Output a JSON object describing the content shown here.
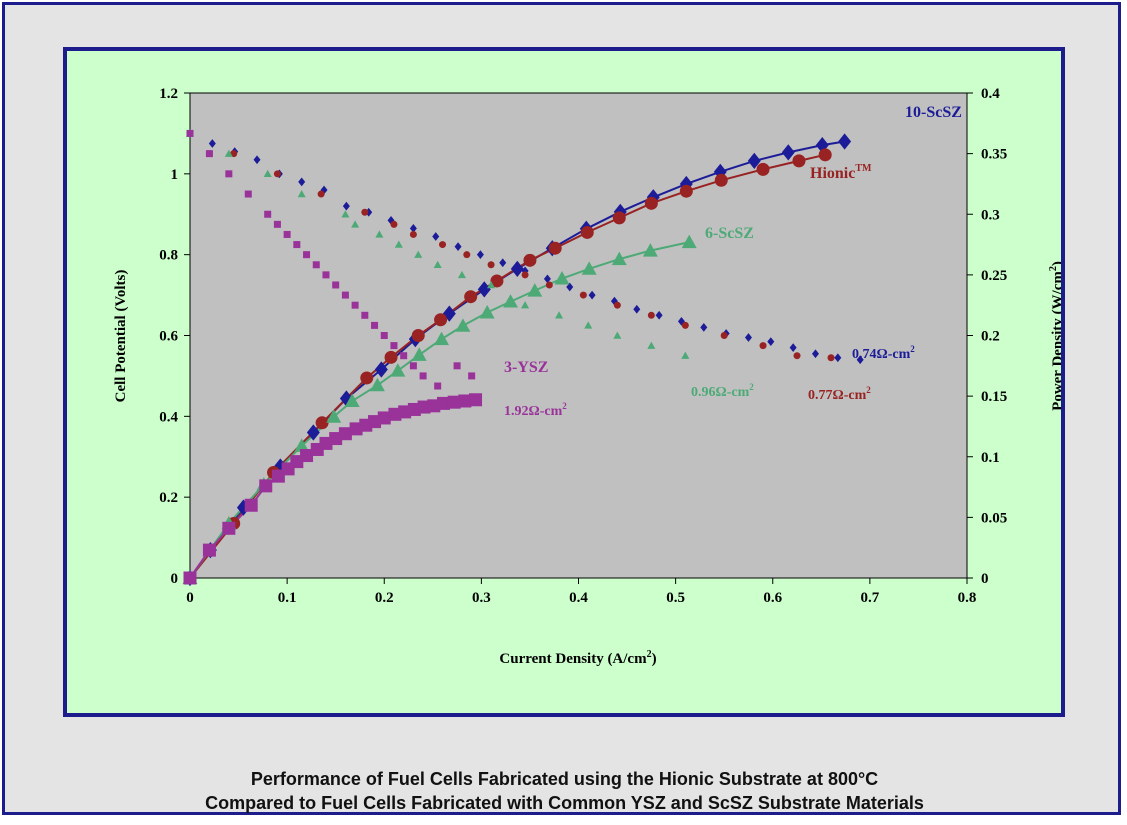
{
  "caption": {
    "line1": "Performance of Fuel Cells Fabricated using the Hionic Substrate at 800°C",
    "line2": "Compared to Fuel Cells Fabricated with Common YSZ and ScSZ Substrate Materials"
  },
  "colors": {
    "plot_bg": "#c0c0c0",
    "panel_bg": "#ccffcc",
    "frame_border": "#1c1c8c",
    "10-ScSZ": "#1c1c99",
    "Hionic": "#992222",
    "6-ScSZ": "#4daa77",
    "3-YSZ": "#993399"
  },
  "chart_data": {
    "type": "scatter",
    "title": "",
    "xlabel": "Current Density (A/cm2)",
    "ylabel_left": "Cell Potential (Volts)",
    "ylabel_right": "Power Density (W/cm2)",
    "xlim": [
      0,
      0.8
    ],
    "ylim_left": [
      0,
      1.2
    ],
    "ylim_right": [
      0,
      0.4
    ],
    "x_ticks": [
      "0",
      "0.1",
      "0.2",
      "0.3",
      "0.4",
      "0.5",
      "0.6",
      "0.7",
      "0.8"
    ],
    "y_left_ticks": [
      "0",
      "0.2",
      "0.4",
      "0.6",
      "0.8",
      "1",
      "1.2"
    ],
    "y_right_ticks": [
      "0",
      "0.05",
      "0.1",
      "0.15",
      "0.2",
      "0.25",
      "0.3",
      "0.35",
      "0.4"
    ],
    "grid": false,
    "series": [
      {
        "name": "10-ScSZ",
        "color": "#1c1c99",
        "marker": "diamond",
        "voltage": {
          "x": [
            0,
            0.023,
            0.046,
            0.069,
            0.092,
            0.115,
            0.138,
            0.161,
            0.184,
            0.207,
            0.23,
            0.253,
            0.276,
            0.299,
            0.322,
            0.345,
            0.368,
            0.391,
            0.414,
            0.437,
            0.46,
            0.483,
            0.506,
            0.529,
            0.552,
            0.575,
            0.598,
            0.621,
            0.644,
            0.667,
            0.69
          ],
          "y": [
            1.1,
            1.075,
            1.055,
            1.035,
            1.0,
            0.98,
            0.96,
            0.92,
            0.905,
            0.885,
            0.865,
            0.845,
            0.82,
            0.8,
            0.78,
            0.76,
            0.74,
            0.72,
            0.7,
            0.685,
            0.665,
            0.65,
            0.635,
            0.62,
            0.605,
            0.595,
            0.585,
            0.57,
            0.555,
            0.545,
            0.54
          ]
        },
        "power": {
          "x": [
            0,
            0.021,
            0.055,
            0.093,
            0.127,
            0.161,
            0.197,
            0.232,
            0.267,
            0.303,
            0.337,
            0.373,
            0.408,
            0.443,
            0.477,
            0.511,
            0.546,
            0.581,
            0.616,
            0.651,
            0.674
          ],
          "y": [
            0,
            0.023,
            0.058,
            0.092,
            0.12,
            0.148,
            0.172,
            0.197,
            0.218,
            0.238,
            0.255,
            0.272,
            0.288,
            0.302,
            0.314,
            0.325,
            0.335,
            0.344,
            0.351,
            0.357,
            0.36
          ]
        },
        "resistance_label": "0.74Ω-cm2"
      },
      {
        "name": "Hionic™",
        "color": "#992222",
        "marker": "circle",
        "voltage": {
          "x": [
            0,
            0.045,
            0.09,
            0.135,
            0.18,
            0.21,
            0.23,
            0.26,
            0.285,
            0.31,
            0.345,
            0.37,
            0.405,
            0.44,
            0.475,
            0.51,
            0.55,
            0.59,
            0.625,
            0.66
          ],
          "y": [
            1.1,
            1.05,
            1.0,
            0.95,
            0.905,
            0.875,
            0.85,
            0.825,
            0.8,
            0.775,
            0.75,
            0.725,
            0.7,
            0.675,
            0.65,
            0.625,
            0.6,
            0.575,
            0.55,
            0.545
          ]
        },
        "power": {
          "x": [
            0,
            0.045,
            0.086,
            0.136,
            0.182,
            0.207,
            0.235,
            0.258,
            0.289,
            0.316,
            0.35,
            0.376,
            0.409,
            0.442,
            0.475,
            0.511,
            0.547,
            0.59,
            0.627,
            0.654
          ],
          "y": [
            0,
            0.045,
            0.087,
            0.128,
            0.165,
            0.182,
            0.2,
            0.213,
            0.232,
            0.245,
            0.262,
            0.272,
            0.285,
            0.297,
            0.309,
            0.319,
            0.328,
            0.337,
            0.344,
            0.349
          ]
        },
        "resistance_label": "0.77Ω-cm2"
      },
      {
        "name": "6-ScSZ",
        "color": "#4daa77",
        "marker": "triangle",
        "voltage": {
          "x": [
            0,
            0.04,
            0.08,
            0.115,
            0.16,
            0.17,
            0.195,
            0.215,
            0.235,
            0.255,
            0.28,
            0.31,
            0.345,
            0.38,
            0.41,
            0.44,
            0.475,
            0.51
          ],
          "y": [
            1.1,
            1.05,
            1.0,
            0.95,
            0.9,
            0.875,
            0.85,
            0.825,
            0.8,
            0.775,
            0.75,
            0.725,
            0.675,
            0.65,
            0.625,
            0.6,
            0.575,
            0.55
          ]
        },
        "power": {
          "x": [
            0,
            0.04,
            0.076,
            0.115,
            0.148,
            0.167,
            0.193,
            0.214,
            0.236,
            0.259,
            0.281,
            0.306,
            0.33,
            0.355,
            0.383,
            0.411,
            0.442,
            0.474,
            0.514
          ],
          "y": [
            0,
            0.045,
            0.077,
            0.109,
            0.133,
            0.146,
            0.159,
            0.171,
            0.184,
            0.197,
            0.208,
            0.219,
            0.228,
            0.237,
            0.247,
            0.255,
            0.263,
            0.27,
            0.277
          ]
        },
        "resistance_label": "0.96Ω-cm2"
      },
      {
        "name": "3-YSZ",
        "color": "#993399",
        "marker": "square",
        "voltage": {
          "x": [
            0,
            0.02,
            0.04,
            0.06,
            0.08,
            0.09,
            0.1,
            0.11,
            0.12,
            0.13,
            0.14,
            0.15,
            0.16,
            0.17,
            0.18,
            0.19,
            0.2,
            0.21,
            0.22,
            0.23,
            0.24,
            0.255,
            0.275,
            0.29
          ],
          "y": [
            1.1,
            1.05,
            1.0,
            0.95,
            0.9,
            0.875,
            0.85,
            0.825,
            0.8,
            0.775,
            0.75,
            0.725,
            0.7,
            0.675,
            0.65,
            0.625,
            0.6,
            0.575,
            0.55,
            0.525,
            0.5,
            0.475,
            0.525,
            0.5
          ]
        },
        "power": {
          "x": [
            0,
            0.02,
            0.04,
            0.063,
            0.078,
            0.091,
            0.101,
            0.11,
            0.12,
            0.131,
            0.14,
            0.15,
            0.16,
            0.171,
            0.181,
            0.19,
            0.2,
            0.211,
            0.221,
            0.231,
            0.241,
            0.251,
            0.261,
            0.272,
            0.283,
            0.294
          ],
          "y": [
            0,
            0.023,
            0.041,
            0.06,
            0.076,
            0.084,
            0.09,
            0.096,
            0.101,
            0.106,
            0.111,
            0.115,
            0.119,
            0.123,
            0.126,
            0.129,
            0.132,
            0.135,
            0.137,
            0.139,
            0.141,
            0.142,
            0.144,
            0.145,
            0.146,
            0.147
          ]
        },
        "resistance_label": "1.92Ω-cm2"
      }
    ],
    "labels": {
      "10-ScSZ": "10-ScSZ",
      "Hionic": "Hionic",
      "Hionic_tm": "TM",
      "6-ScSZ": "6-ScSZ",
      "3-YSZ": "3-YSZ",
      "r_10ScSZ": "0.74Ω-cm",
      "r_Hionic": "0.77Ω-cm",
      "r_6ScSZ": "0.96Ω-cm",
      "r_3YSZ": "1.92Ω-cm",
      "sup2": "2"
    },
    "axis_text": {
      "xlabel_main": "Current Density (A/cm",
      "xlabel_tail": ")",
      "ylabel_left": "Cell Potential (Volts)",
      "ylabel_right_main": "Power Density (W/cm",
      "ylabel_right_tail": ")",
      "sup2": "2"
    }
  }
}
